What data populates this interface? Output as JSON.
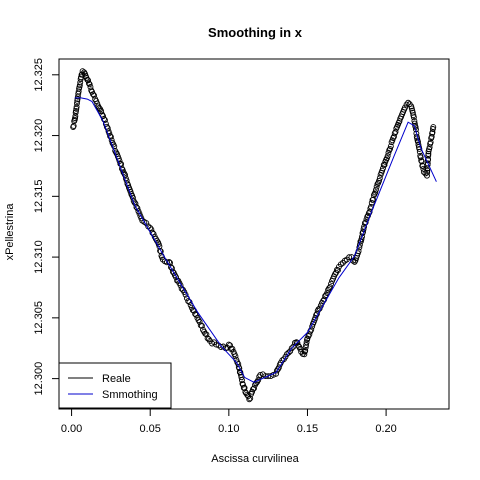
{
  "chart_data": {
    "type": "scatter",
    "title": "Smoothing in x",
    "xlabel": "Ascissa curvilinea",
    "ylabel": "xPellestrina",
    "xlim": [
      -0.008,
      0.24
    ],
    "ylim": [
      12.2975,
      12.3263
    ],
    "xticks": [
      0.0,
      0.05,
      0.1,
      0.15,
      0.2
    ],
    "xtick_labels": [
      "0.00",
      "0.05",
      "0.10",
      "0.15",
      "0.20"
    ],
    "yticks": [
      12.3,
      12.305,
      12.31,
      12.315,
      12.32,
      12.325
    ],
    "ytick_labels": [
      "12.300",
      "12.305",
      "12.310",
      "12.315",
      "12.320",
      "12.325"
    ],
    "grid": false,
    "legend": {
      "position": "bottom-left",
      "entries": [
        {
          "label": "Reale",
          "color": "#000000",
          "style": "line"
        },
        {
          "label": "Smmothing",
          "color": "#0000cc",
          "style": "line"
        }
      ]
    },
    "series": [
      {
        "name": "Reale",
        "kind": "points",
        "marker": "open-circle",
        "color": "#000000",
        "anchors": [
          [
            0.001,
            12.3207
          ],
          [
            0.002,
            12.3213
          ],
          [
            0.003,
            12.3222
          ],
          [
            0.004,
            12.3232
          ],
          [
            0.005,
            12.324
          ],
          [
            0.006,
            12.3248
          ],
          [
            0.007,
            12.3253
          ],
          [
            0.008,
            12.3252
          ],
          [
            0.009,
            12.3249
          ],
          [
            0.01,
            12.3246
          ],
          [
            0.011,
            12.3243
          ],
          [
            0.012,
            12.324
          ],
          [
            0.013,
            12.3236
          ],
          [
            0.015,
            12.323
          ],
          [
            0.017,
            12.3224
          ],
          [
            0.02,
            12.3216
          ],
          [
            0.023,
            12.3206
          ],
          [
            0.026,
            12.3194
          ],
          [
            0.03,
            12.3181
          ],
          [
            0.035,
            12.3163
          ],
          [
            0.04,
            12.3145
          ],
          [
            0.045,
            12.313
          ],
          [
            0.05,
            12.3124
          ],
          [
            0.055,
            12.3112
          ],
          [
            0.058,
            12.3098
          ],
          [
            0.062,
            12.3096
          ],
          [
            0.065,
            12.3087
          ],
          [
            0.07,
            12.3074
          ],
          [
            0.075,
            12.3063
          ],
          [
            0.08,
            12.305
          ],
          [
            0.085,
            12.3037
          ],
          [
            0.088,
            12.3031
          ],
          [
            0.092,
            12.3028
          ],
          [
            0.095,
            12.3026
          ],
          [
            0.098,
            12.3025
          ],
          [
            0.1,
            12.3028
          ],
          [
            0.103,
            12.3022
          ],
          [
            0.106,
            12.3012
          ],
          [
            0.109,
            12.2995
          ],
          [
            0.111,
            12.2988
          ],
          [
            0.113,
            12.2983
          ],
          [
            0.116,
            12.2992
          ],
          [
            0.12,
            12.3003
          ],
          [
            0.125,
            12.3002
          ],
          [
            0.13,
            12.3004
          ],
          [
            0.133,
            12.3013
          ],
          [
            0.136,
            12.3018
          ],
          [
            0.14,
            12.3025
          ],
          [
            0.143,
            12.303
          ],
          [
            0.146,
            12.3022
          ],
          [
            0.148,
            12.302
          ],
          [
            0.15,
            12.3033
          ],
          [
            0.153,
            12.3043
          ],
          [
            0.157,
            12.3057
          ],
          [
            0.16,
            12.3064
          ],
          [
            0.165,
            12.3078
          ],
          [
            0.17,
            12.3092
          ],
          [
            0.175,
            12.3098
          ],
          [
            0.178,
            12.31
          ],
          [
            0.18,
            12.3096
          ],
          [
            0.183,
            12.3108
          ],
          [
            0.186,
            12.3125
          ],
          [
            0.19,
            12.314
          ],
          [
            0.194,
            12.3158
          ],
          [
            0.198,
            12.3173
          ],
          [
            0.202,
            12.3188
          ],
          [
            0.206,
            12.3203
          ],
          [
            0.209,
            12.3214
          ],
          [
            0.212,
            12.3223
          ],
          [
            0.214,
            12.3227
          ],
          [
            0.216,
            12.3224
          ],
          [
            0.218,
            12.3212
          ],
          [
            0.22,
            12.3196
          ],
          [
            0.222,
            12.3182
          ],
          [
            0.224,
            12.317
          ],
          [
            0.226,
            12.3167
          ],
          [
            0.227,
            12.3187
          ],
          [
            0.229,
            12.3199
          ],
          [
            0.23,
            12.3207
          ]
        ]
      },
      {
        "name": "Smmothing",
        "kind": "line",
        "color": "#0000cc",
        "points": [
          [
            0.002,
            12.3231
          ],
          [
            0.006,
            12.3231
          ],
          [
            0.01,
            12.323
          ],
          [
            0.013,
            12.3228
          ],
          [
            0.02,
            12.3212
          ],
          [
            0.04,
            12.3143
          ],
          [
            0.06,
            12.3098
          ],
          [
            0.08,
            12.3055
          ],
          [
            0.095,
            12.3027
          ],
          [
            0.105,
            12.3013
          ],
          [
            0.11,
            12.3001
          ],
          [
            0.116,
            12.2997
          ],
          [
            0.13,
            12.3005
          ],
          [
            0.14,
            12.3025
          ],
          [
            0.15,
            12.3038
          ],
          [
            0.17,
            12.3083
          ],
          [
            0.18,
            12.3101
          ],
          [
            0.19,
            12.3135
          ],
          [
            0.205,
            12.3183
          ],
          [
            0.214,
            12.3211
          ],
          [
            0.218,
            12.3208
          ],
          [
            0.222,
            12.319
          ],
          [
            0.232,
            12.3162
          ]
        ]
      }
    ]
  }
}
